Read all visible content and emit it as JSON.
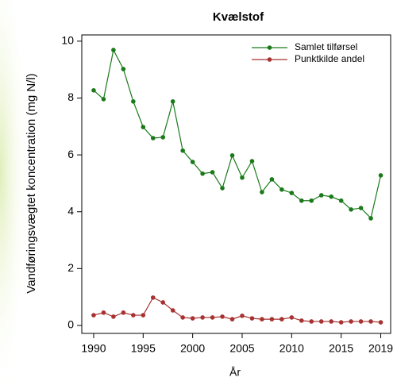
{
  "chart_data": {
    "type": "line",
    "title": "Kvælstof",
    "x_label": "År",
    "y_label": "Vandføringsvægtet koncentration (mg N/l)",
    "x": [
      1990,
      1991,
      1992,
      1993,
      1994,
      1995,
      1996,
      1997,
      1998,
      1999,
      2000,
      2001,
      2002,
      2003,
      2004,
      2005,
      2006,
      2007,
      2008,
      2009,
      2010,
      2011,
      2012,
      2013,
      2014,
      2015,
      2016,
      2017,
      2018,
      2019
    ],
    "series": [
      {
        "name": "Samlet tilførsel",
        "color": "#1a7a1a",
        "values": [
          8.27,
          7.96,
          9.69,
          9.02,
          7.88,
          6.98,
          6.59,
          6.62,
          7.88,
          6.15,
          5.75,
          5.34,
          5.39,
          4.83,
          5.98,
          5.2,
          5.78,
          4.69,
          5.14,
          4.78,
          4.66,
          4.39,
          4.39,
          4.58,
          4.53,
          4.39,
          4.08,
          4.13,
          3.77,
          5.28
        ]
      },
      {
        "name": "Punktkilde andel",
        "color": "#a83232",
        "values": [
          0.36,
          0.45,
          0.31,
          0.45,
          0.36,
          0.36,
          0.98,
          0.81,
          0.53,
          0.28,
          0.25,
          0.28,
          0.28,
          0.31,
          0.22,
          0.34,
          0.25,
          0.22,
          0.22,
          0.22,
          0.28,
          0.17,
          0.14,
          0.14,
          0.14,
          0.11,
          0.14,
          0.14,
          0.14,
          0.11
        ]
      }
    ],
    "xlim": [
      1988.8,
      2020.0
    ],
    "xticks": [
      1990,
      1995,
      2000,
      2005,
      2010,
      2015,
      2019
    ],
    "ylim": [
      -0.28,
      10.22
    ],
    "yticks": [
      0,
      2,
      4,
      6,
      8,
      10
    ],
    "legend": "topright"
  }
}
